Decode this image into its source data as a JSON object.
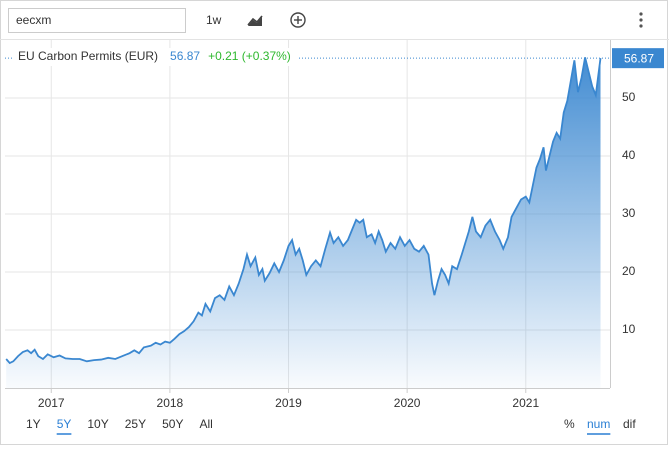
{
  "search_query": "eecxm",
  "interval": "1w",
  "ranges": [
    "1Y",
    "5Y",
    "10Y",
    "25Y",
    "50Y",
    "All"
  ],
  "modes": [
    "%",
    "num",
    "dif"
  ],
  "chart_data": {
    "type": "area",
    "change": "+0.21 (+0.37%)",
    "series": [
      {
        "name": "EU Carbon Permits (EUR)",
        "color": "#3a87d0",
        "x": [
          2016.62,
          2016.65,
          2016.68,
          2016.72,
          2016.76,
          2016.8,
          2016.83,
          2016.86,
          2016.89,
          2016.93,
          2016.97,
          2017.02,
          2017.07,
          2017.12,
          2017.18,
          2017.24,
          2017.3,
          2017.36,
          2017.42,
          2017.48,
          2017.54,
          2017.6,
          2017.66,
          2017.7,
          2017.74,
          2017.78,
          2017.84,
          2017.88,
          2017.92,
          2017.96,
          2018.0,
          2018.04,
          2018.08,
          2018.12,
          2018.16,
          2018.2,
          2018.24,
          2018.27,
          2018.3,
          2018.34,
          2018.38,
          2018.42,
          2018.46,
          2018.5,
          2018.54,
          2018.58,
          2018.62,
          2018.65,
          2018.68,
          2018.72,
          2018.75,
          2018.78,
          2018.8,
          2018.84,
          2018.88,
          2018.92,
          2018.96,
          2019.0,
          2019.03,
          2019.06,
          2019.09,
          2019.12,
          2019.15,
          2019.19,
          2019.23,
          2019.27,
          2019.31,
          2019.35,
          2019.38,
          2019.42,
          2019.46,
          2019.5,
          2019.54,
          2019.57,
          2019.6,
          2019.63,
          2019.66,
          2019.7,
          2019.73,
          2019.76,
          2019.79,
          2019.82,
          2019.86,
          2019.9,
          2019.94,
          2019.98,
          2020.02,
          2020.06,
          2020.1,
          2020.14,
          2020.18,
          2020.21,
          2020.23,
          2020.26,
          2020.29,
          2020.32,
          2020.35,
          2020.38,
          2020.42,
          2020.46,
          2020.49,
          2020.52,
          2020.55,
          2020.58,
          2020.62,
          2020.66,
          2020.7,
          2020.74,
          2020.78,
          2020.81,
          2020.85,
          2020.88,
          2020.92,
          2020.96,
          2021.0,
          2021.03,
          2021.06,
          2021.09,
          2021.12,
          2021.15,
          2021.17,
          2021.2,
          2021.23,
          2021.26,
          2021.29,
          2021.32,
          2021.35,
          2021.38,
          2021.41,
          2021.44,
          2021.47,
          2021.5,
          2021.53,
          2021.56,
          2021.59,
          2021.63
        ],
        "values": [
          5.0,
          4.3,
          4.6,
          5.5,
          6.2,
          6.5,
          6.0,
          6.6,
          5.5,
          5.0,
          5.8,
          5.3,
          5.6,
          5.1,
          5.0,
          5.0,
          4.6,
          4.8,
          4.9,
          5.2,
          5.0,
          5.5,
          6.0,
          6.5,
          6.0,
          7.0,
          7.3,
          7.8,
          7.5,
          8.0,
          7.8,
          8.5,
          9.3,
          9.8,
          10.5,
          11.5,
          13.0,
          12.5,
          14.5,
          13.2,
          15.5,
          16.0,
          15.2,
          17.5,
          16.0,
          18.0,
          20.5,
          23.0,
          21.0,
          22.5,
          19.5,
          20.5,
          18.5,
          19.8,
          21.5,
          20.0,
          22.0,
          24.5,
          25.5,
          23.0,
          24.0,
          22.0,
          19.5,
          21.0,
          22.0,
          21.0,
          24.0,
          26.8,
          25.0,
          26.0,
          24.5,
          25.5,
          27.5,
          29.0,
          28.5,
          29.0,
          26.0,
          26.5,
          25.0,
          27.0,
          25.5,
          23.5,
          25.0,
          24.0,
          26.0,
          24.5,
          25.5,
          24.0,
          23.5,
          24.5,
          23.0,
          18.0,
          16.0,
          18.5,
          20.5,
          19.5,
          18.0,
          21.0,
          20.5,
          23.0,
          25.0,
          27.0,
          29.5,
          27.0,
          26.0,
          28.0,
          29.0,
          27.0,
          25.5,
          24.0,
          26.0,
          29.5,
          31.0,
          32.5,
          33.0,
          32.0,
          35.0,
          38.0,
          39.5,
          41.5,
          37.5,
          40.0,
          42.5,
          44.0,
          43.0,
          47.5,
          49.5,
          53.0,
          56.5,
          51.0,
          53.5,
          57.0,
          54.5,
          52.0,
          50.5,
          56.87
        ]
      }
    ],
    "xlim": [
      2016.61,
      2021.71
    ],
    "xticks": [
      2017,
      2018,
      2019,
      2020,
      2021
    ],
    "ylim": [
      0,
      60
    ],
    "yticks": [
      10,
      20,
      30,
      40,
      50
    ],
    "grid": true
  }
}
